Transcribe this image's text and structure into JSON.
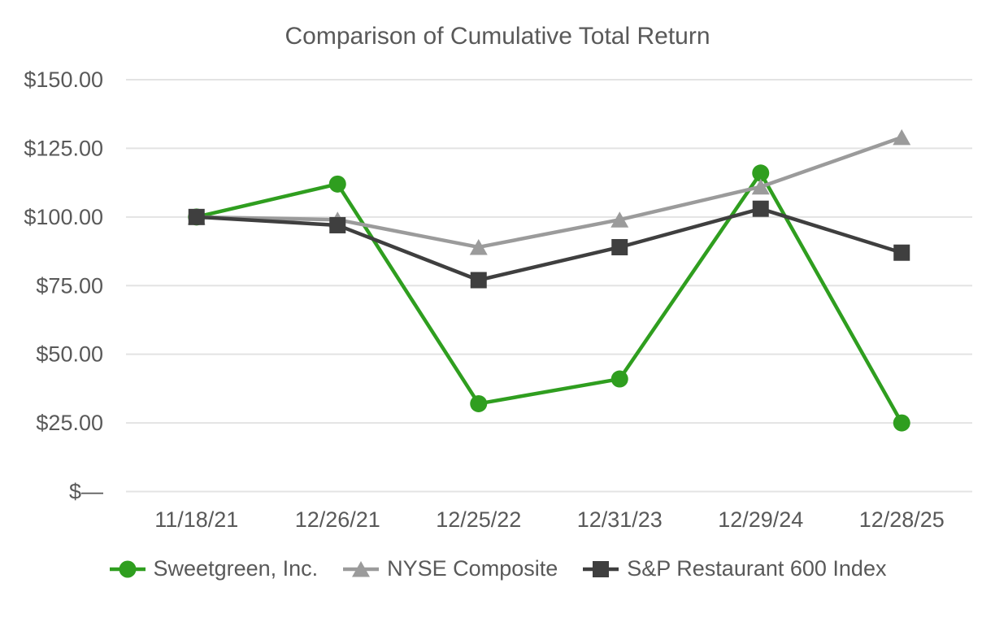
{
  "page": {
    "background_color": "#ffffff",
    "text_color": "#595959",
    "gridline_color": "#e3e3e3"
  },
  "chart_data": {
    "type": "line",
    "title": "Comparison of Cumulative Total Return",
    "xlabel": "",
    "ylabel": "",
    "categories": [
      "11/18/21",
      "12/26/21",
      "12/25/22",
      "12/31/23",
      "12/29/24",
      "12/28/25"
    ],
    "series": [
      {
        "name": "Sweetgreen, Inc.",
        "marker": "circle",
        "color": "#2f9e1f",
        "values": [
          100,
          112,
          32,
          41,
          116,
          25
        ]
      },
      {
        "name": "NYSE Composite",
        "marker": "triangle",
        "color": "#9b9b9b",
        "values": [
          100,
          99,
          89,
          99,
          111,
          129
        ]
      },
      {
        "name": "S&P Restaurant 600 Index",
        "marker": "square",
        "color": "#3f3f3f",
        "values": [
          100,
          97,
          77,
          89,
          103,
          87
        ]
      }
    ],
    "ylim": [
      0,
      150
    ],
    "ytick_values": [
      0,
      25,
      50,
      75,
      100,
      125,
      150
    ],
    "ytick_labels": [
      "$—",
      "$25.00",
      "$50.00",
      "$75.00",
      "$100.00",
      "$125.00",
      "$150.00"
    ],
    "grid": true,
    "legend_position": "bottom"
  }
}
